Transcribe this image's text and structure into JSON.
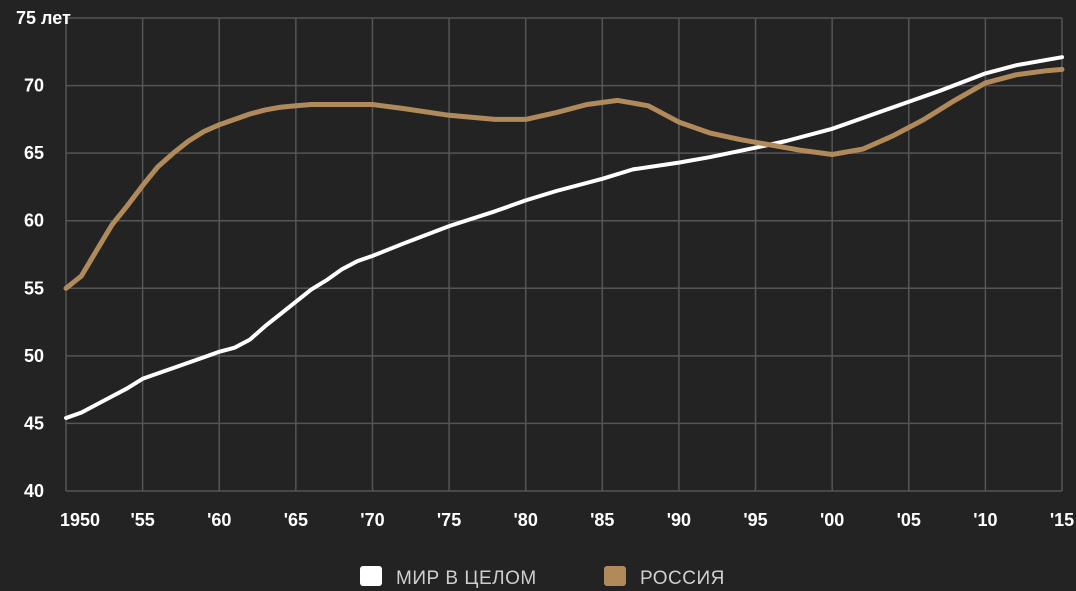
{
  "chart_data": {
    "type": "line",
    "title": "",
    "xlabel": "",
    "ylabel": "лет",
    "y_title_label": "75 лет",
    "x_range": [
      1950,
      2015
    ],
    "ylim": [
      40,
      75
    ],
    "y_ticks": [
      40,
      45,
      50,
      55,
      60,
      65,
      70
    ],
    "x_ticks": [
      1950,
      1955,
      1960,
      1965,
      1970,
      1975,
      1980,
      1985,
      1990,
      1995,
      2000,
      2005,
      2010,
      2015
    ],
    "x_tick_labels": [
      "1950",
      "'55",
      "'60",
      "'65",
      "'70",
      "'75",
      "'80",
      "'85",
      "'90",
      "'95",
      "'00",
      "'05",
      "'10",
      "'15"
    ],
    "grid": true,
    "legend_position": "bottom-center",
    "background_color": "#232323",
    "grid_color": "#555555",
    "series": [
      {
        "name": "МИР В ЦЕЛОМ",
        "color": "#ffffff",
        "x": [
          1950,
          1951,
          1952,
          1953,
          1954,
          1955,
          1956,
          1957,
          1958,
          1959,
          1960,
          1961,
          1962,
          1963,
          1964,
          1965,
          1966,
          1967,
          1968,
          1969,
          1970,
          1972,
          1975,
          1978,
          1980,
          1982,
          1985,
          1987,
          1990,
          1992,
          1995,
          1997,
          2000,
          2002,
          2005,
          2007,
          2010,
          2012,
          2015
        ],
        "values": [
          45.4,
          45.8,
          46.4,
          47.0,
          47.6,
          48.3,
          48.7,
          49.1,
          49.5,
          49.9,
          50.3,
          50.6,
          51.2,
          52.2,
          53.1,
          54.0,
          54.9,
          55.6,
          56.4,
          57.0,
          57.4,
          58.3,
          59.6,
          60.7,
          61.5,
          62.2,
          63.1,
          63.8,
          64.3,
          64.7,
          65.4,
          65.9,
          66.8,
          67.6,
          68.8,
          69.6,
          70.9,
          71.5,
          72.1
        ]
      },
      {
        "name": "РОССИЯ",
        "color": "#b08a5b",
        "x": [
          1950,
          1951,
          1952,
          1953,
          1954,
          1955,
          1956,
          1957,
          1958,
          1959,
          1960,
          1961,
          1962,
          1963,
          1964,
          1965,
          1966,
          1967,
          1968,
          1969,
          1970,
          1972,
          1975,
          1978,
          1980,
          1982,
          1984,
          1986,
          1987,
          1988,
          1990,
          1992,
          1994,
          1996,
          1998,
          2000,
          2002,
          2004,
          2006,
          2008,
          2010,
          2012,
          2014,
          2015
        ],
        "values": [
          55.0,
          55.9,
          57.8,
          59.7,
          61.1,
          62.6,
          64.0,
          65.0,
          65.9,
          66.6,
          67.1,
          67.5,
          67.9,
          68.2,
          68.4,
          68.5,
          68.6,
          68.6,
          68.6,
          68.6,
          68.6,
          68.3,
          67.8,
          67.5,
          67.5,
          68.0,
          68.6,
          68.9,
          68.7,
          68.5,
          67.3,
          66.5,
          66.0,
          65.6,
          65.2,
          64.9,
          65.3,
          66.3,
          67.5,
          68.9,
          70.2,
          70.8,
          71.1,
          71.2
        ]
      }
    ]
  }
}
